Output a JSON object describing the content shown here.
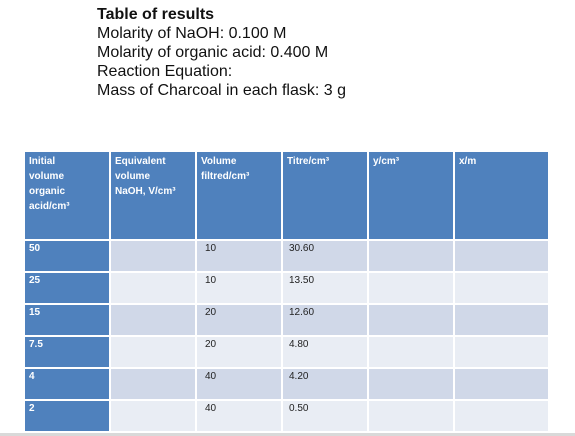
{
  "header": {
    "title": "Table of results",
    "lines": [
      "Molarity of NaOH: 0.100 M",
      "Molarity of organic acid: 0.400 M",
      "Reaction Equation:",
      "Mass of Charcoal in each flask: 3 g"
    ]
  },
  "table": {
    "columns": [
      [
        "Initial",
        "volume",
        "organic",
        "acid/cm³"
      ],
      [
        "Equivalent",
        "volume",
        "NaOH, V/cm³"
      ],
      [
        "Volume",
        "filtred/cm³"
      ],
      [
        "Titre/cm³"
      ],
      [
        "y/cm³"
      ],
      [
        "x/m"
      ]
    ],
    "rows": [
      [
        "50",
        "",
        "10",
        "30.60",
        "",
        ""
      ],
      [
        "25",
        "",
        "10",
        "13.50",
        "",
        ""
      ],
      [
        "15",
        "",
        "20",
        "12.60",
        "",
        ""
      ],
      [
        "7.5",
        "",
        "20",
        "4.80",
        "",
        ""
      ],
      [
        "4",
        "",
        "40",
        "4.20",
        "",
        ""
      ],
      [
        "2",
        "",
        "40",
        "0.50",
        "",
        ""
      ]
    ]
  },
  "colors": {
    "header_blue": "#4f81bd",
    "row_dark": "#d0d8e8",
    "row_light": "#e9edf4"
  }
}
